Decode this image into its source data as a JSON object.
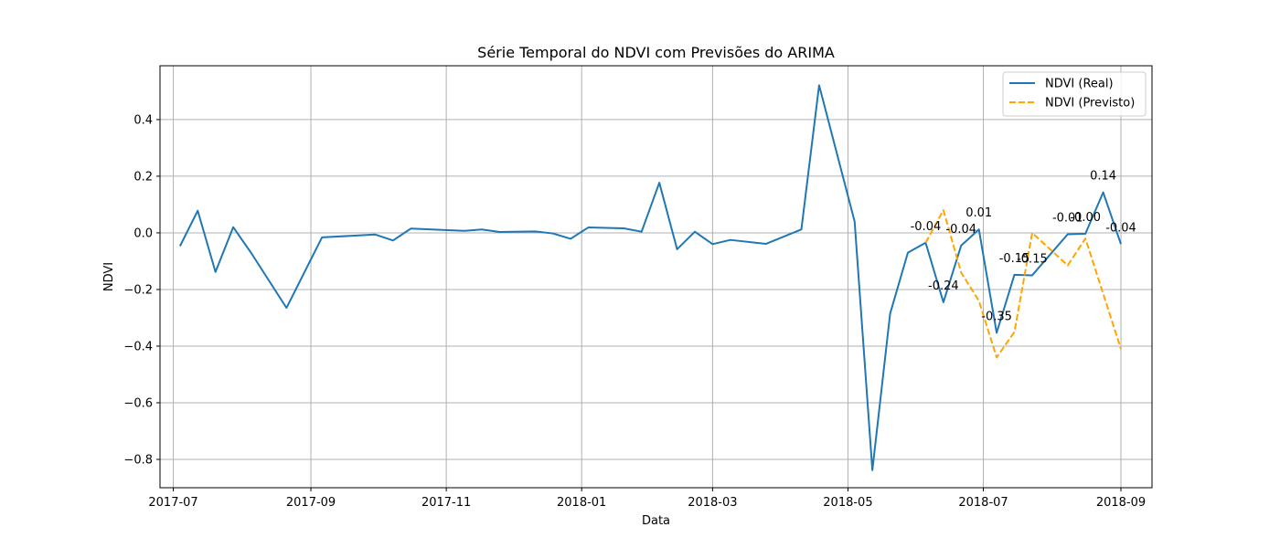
{
  "chart_data": {
    "type": "line",
    "title": "Série Temporal do NDVI com Previsões do ARIMA",
    "xlabel": "Data",
    "ylabel": "NDVI",
    "x_axis": "date",
    "xlim": [
      "2017-06-25",
      "2018-09-15"
    ],
    "ylim": [
      -0.9,
      0.59
    ],
    "grid": true,
    "legend_position": "top-right",
    "x_ticks": [
      "2017-07",
      "2017-09",
      "2017-11",
      "2018-01",
      "2018-03",
      "2018-05",
      "2018-07",
      "2018-09"
    ],
    "y_ticks": [
      0.4,
      0.2,
      0.0,
      -0.2,
      -0.4,
      -0.6,
      -0.8
    ],
    "y_tick_labels": [
      "0.4",
      "0.2",
      "0.0",
      "−0.2",
      "−0.4",
      "−0.6",
      "−0.8"
    ],
    "series": [
      {
        "name": "NDVI (Real)",
        "color": "#1f77b4",
        "style": "solid",
        "points": [
          [
            "2017-07-04",
            -0.047
          ],
          [
            "2017-07-12",
            0.078
          ],
          [
            "2017-07-20",
            -0.138
          ],
          [
            "2017-07-28",
            0.02
          ],
          [
            "2017-08-05",
            -0.07
          ],
          [
            "2017-08-21",
            -0.265
          ],
          [
            "2017-09-06",
            -0.016
          ],
          [
            "2017-09-30",
            -0.006
          ],
          [
            "2017-10-08",
            -0.027
          ],
          [
            "2017-10-16",
            0.015
          ],
          [
            "2017-11-09",
            0.007
          ],
          [
            "2017-11-17",
            0.012
          ],
          [
            "2017-11-25",
            0.003
          ],
          [
            "2017-12-11",
            0.005
          ],
          [
            "2017-12-19",
            -0.002
          ],
          [
            "2017-12-27",
            -0.021
          ],
          [
            "2018-01-04",
            0.019
          ],
          [
            "2018-01-20",
            0.016
          ],
          [
            "2018-01-28",
            0.004
          ],
          [
            "2018-02-05",
            0.177
          ],
          [
            "2018-02-13",
            -0.058
          ],
          [
            "2018-02-21",
            0.004
          ],
          [
            "2018-03-01",
            -0.04
          ],
          [
            "2018-03-09",
            -0.025
          ],
          [
            "2018-03-25",
            -0.039
          ],
          [
            "2018-04-10",
            0.012
          ],
          [
            "2018-04-18",
            0.521
          ],
          [
            "2018-05-04",
            0.04
          ],
          [
            "2018-05-12",
            -0.838
          ],
          [
            "2018-05-20",
            -0.285
          ],
          [
            "2018-05-28",
            -0.07
          ],
          [
            "2018-06-05",
            -0.035
          ],
          [
            "2018-06-13",
            -0.245
          ],
          [
            "2018-06-21",
            -0.045
          ],
          [
            "2018-06-29",
            0.012
          ],
          [
            "2018-07-07",
            -0.353
          ],
          [
            "2018-07-15",
            -0.148
          ],
          [
            "2018-07-23",
            -0.15
          ],
          [
            "2018-08-08",
            -0.005
          ],
          [
            "2018-08-16",
            -0.003
          ],
          [
            "2018-08-24",
            0.143
          ],
          [
            "2018-09-01",
            -0.04
          ]
        ]
      },
      {
        "name": "NDVI (Previsto)",
        "color": "#ffa500",
        "style": "dashed",
        "points": [
          [
            "2018-06-05",
            -0.035
          ],
          [
            "2018-06-13",
            0.08
          ],
          [
            "2018-06-21",
            -0.14
          ],
          [
            "2018-06-29",
            -0.24
          ],
          [
            "2018-07-07",
            -0.44
          ],
          [
            "2018-07-15",
            -0.35
          ],
          [
            "2018-07-23",
            0.0
          ],
          [
            "2018-08-08",
            -0.115
          ],
          [
            "2018-08-16",
            -0.02
          ],
          [
            "2018-09-01",
            -0.41
          ]
        ]
      }
    ],
    "annotations": [
      {
        "x": "2018-06-05",
        "y": -0.035,
        "text": "-0.04"
      },
      {
        "x": "2018-06-13",
        "y": -0.245,
        "text": "-0.24"
      },
      {
        "x": "2018-06-21",
        "y": -0.045,
        "text": "-0.04"
      },
      {
        "x": "2018-06-29",
        "y": 0.012,
        "text": "0.01"
      },
      {
        "x": "2018-07-07",
        "y": -0.353,
        "text": "-0.35"
      },
      {
        "x": "2018-07-15",
        "y": -0.148,
        "text": "-0.15"
      },
      {
        "x": "2018-07-23",
        "y": -0.15,
        "text": "-0.15"
      },
      {
        "x": "2018-08-08",
        "y": -0.005,
        "text": "-0.01"
      },
      {
        "x": "2018-08-16",
        "y": -0.003,
        "text": "-0.00"
      },
      {
        "x": "2018-08-24",
        "y": 0.143,
        "text": "0.14"
      },
      {
        "x": "2018-09-01",
        "y": -0.04,
        "text": "-0.04"
      }
    ]
  }
}
